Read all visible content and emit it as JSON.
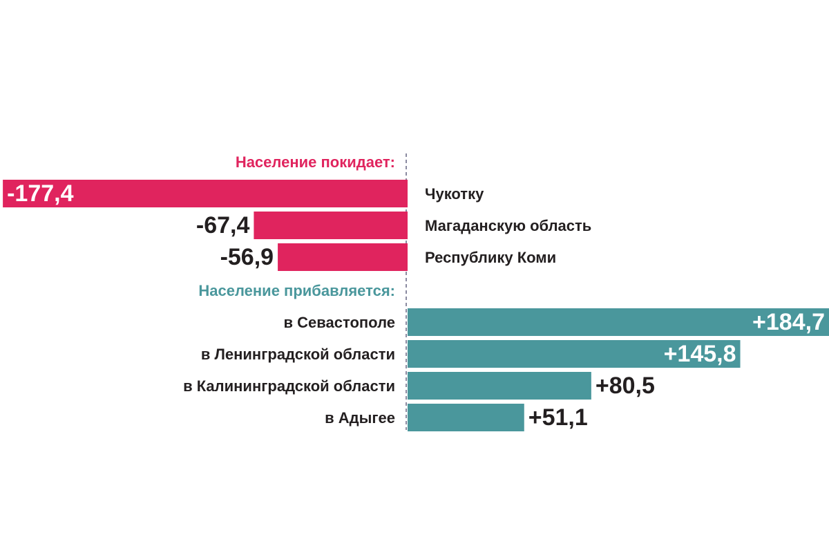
{
  "chart_data": {
    "type": "bar",
    "orientation": "horizontal",
    "series": [
      {
        "name": "Население покидает:",
        "color": "#e0245e",
        "categories": [
          "Чукотку",
          "Магаданскую область",
          "Республику Коми"
        ],
        "values": [
          -177.4,
          -67.4,
          -56.9
        ],
        "value_labels": [
          "-177,4",
          "-67,4",
          "-56,9"
        ]
      },
      {
        "name": "Население прибавляется:",
        "color": "#4a979c",
        "categories": [
          "в Севастополе",
          "в Ленинградской области",
          "в Калининградской области",
          "в Адыгее"
        ],
        "values": [
          184.7,
          145.8,
          80.5,
          51.1
        ],
        "value_labels": [
          "+184,7",
          "+145,8",
          "+80,5",
          "+51,1"
        ]
      }
    ]
  }
}
